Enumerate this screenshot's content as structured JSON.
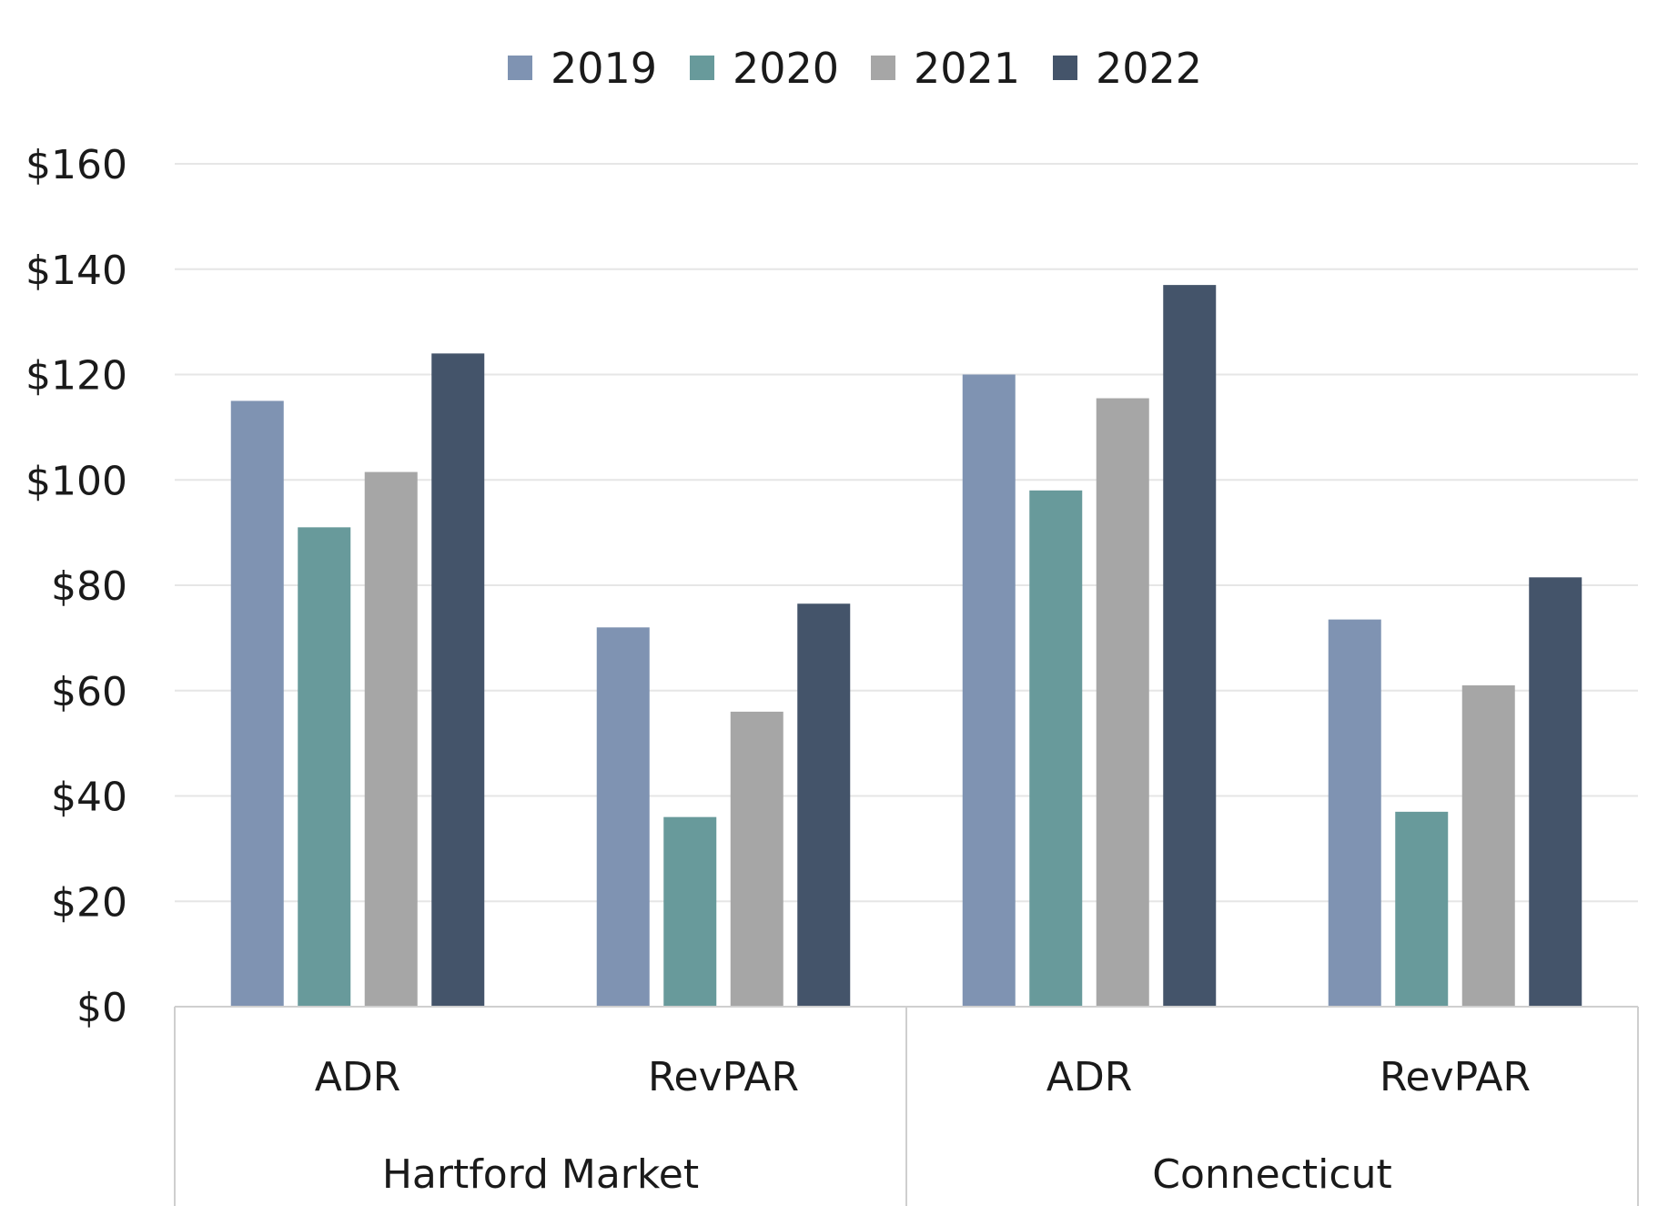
{
  "chart_data": {
    "type": "bar",
    "groups": [
      {
        "label": "Hartford Market",
        "categories": [
          "ADR",
          "RevPAR"
        ]
      },
      {
        "label": "Connecticut",
        "categories": [
          "ADR",
          "RevPAR"
        ]
      }
    ],
    "categories": [
      "ADR",
      "RevPAR",
      "ADR",
      "RevPAR"
    ],
    "series": [
      {
        "name": "2019",
        "color": "#7f93b2",
        "values": [
          115,
          72,
          120,
          73.5
        ]
      },
      {
        "name": "2020",
        "color": "#689a9b",
        "values": [
          91,
          36,
          98,
          37
        ]
      },
      {
        "name": "2021",
        "color": "#a6a6a6",
        "values": [
          101.5,
          56,
          115.5,
          61
        ]
      },
      {
        "name": "2022",
        "color": "#44546a",
        "values": [
          124,
          76.5,
          137,
          81.5
        ]
      }
    ],
    "yticks": [
      "$0",
      "$20",
      "$40",
      "$60",
      "$80",
      "$100",
      "$120",
      "$140",
      "$160"
    ],
    "ylim": [
      0,
      160
    ],
    "ystep": 20,
    "grid": true,
    "legend_position": "top-center",
    "title": "",
    "xlabel": "",
    "ylabel": ""
  }
}
